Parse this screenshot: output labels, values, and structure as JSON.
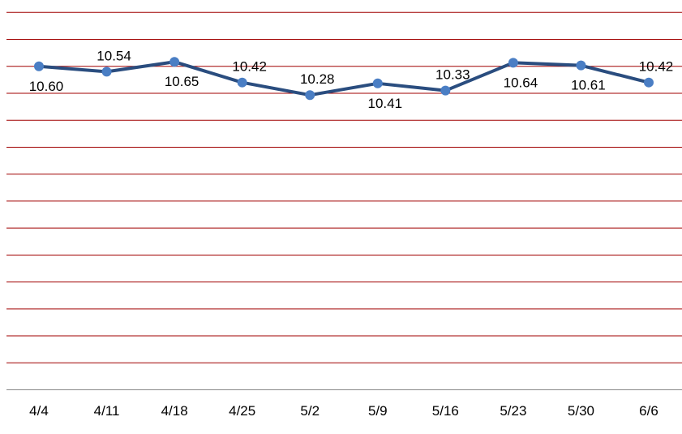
{
  "chart_data": {
    "type": "line",
    "categories": [
      "4/4",
      "4/11",
      "4/18",
      "4/25",
      "5/2",
      "5/9",
      "5/16",
      "5/23",
      "5/30",
      "6/6"
    ],
    "series": [
      {
        "values": [
          10.6,
          10.54,
          10.65,
          10.42,
          10.28,
          10.41,
          10.33,
          10.64,
          10.61,
          10.42
        ],
        "labels": [
          "10.60",
          "10.54",
          "10.65",
          "10.42",
          "10.28",
          "10.41",
          "10.33",
          "10.64",
          "10.61",
          "10.42"
        ],
        "color": "#2a4d7f",
        "marker_color": "#4a7ec4"
      }
    ],
    "ylim": [
      7.0,
      11.2
    ],
    "grid": true,
    "grid_color": "#a00000",
    "axis_color": "#888888"
  }
}
